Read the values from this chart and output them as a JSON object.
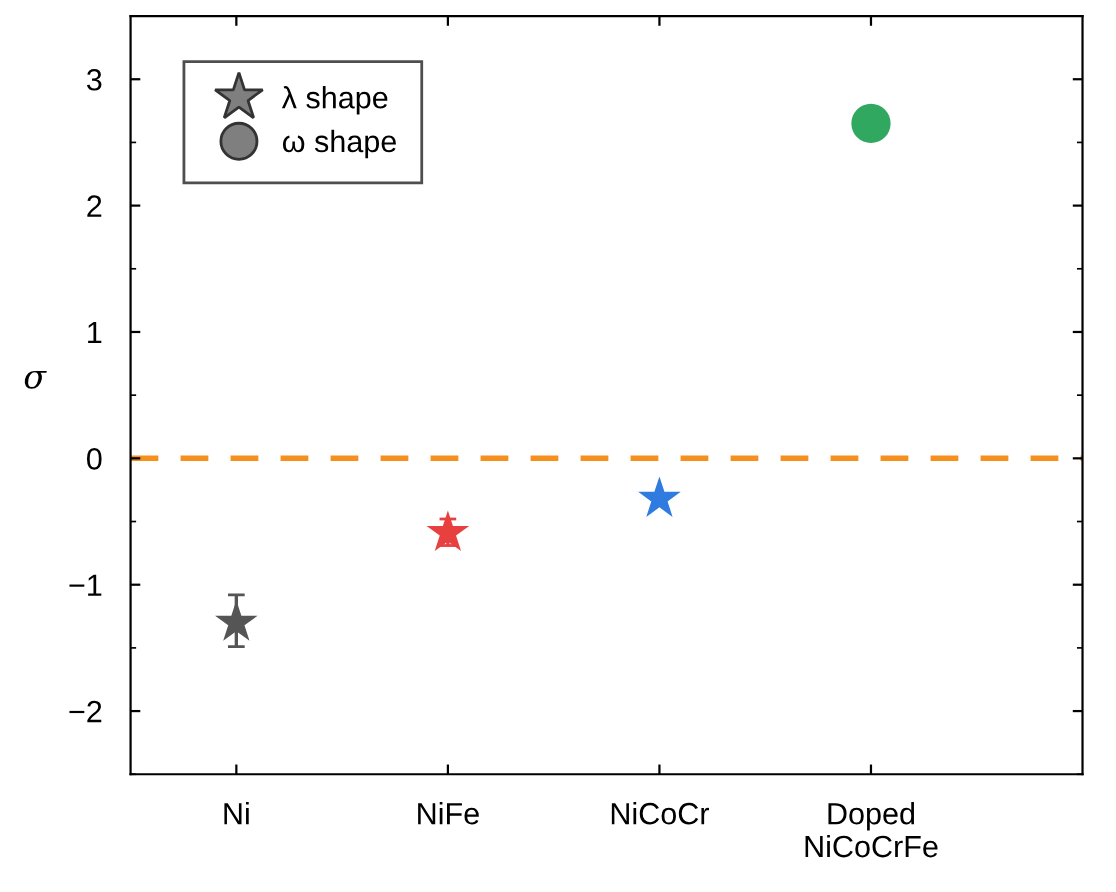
{
  "chart_data": {
    "type": "scatter",
    "ylabel": "σ",
    "categories": [
      "Ni",
      "NiFe",
      "NiCoCr",
      "Doped\nNiCoCrFe"
    ],
    "series": [
      {
        "marker": "star",
        "colors": [
          "#555555",
          "#e8403f",
          "#2f7be0",
          null
        ],
        "values": [
          -1.3,
          -0.59,
          -0.32,
          null
        ],
        "errors": [
          [
            -1.49,
            -1.08
          ],
          [
            -0.69,
            -0.48
          ],
          null,
          null
        ]
      },
      {
        "marker": "circle",
        "colors": [
          null,
          null,
          null,
          "#30a860"
        ],
        "values": [
          null,
          null,
          null,
          2.65
        ]
      }
    ],
    "ylim": [
      -2.5,
      3.5
    ],
    "yticks": [
      {
        "value": -2,
        "label": "−2"
      },
      {
        "value": -1,
        "label": "−1"
      },
      0,
      1,
      2,
      3
    ],
    "ref_lines": [
      {
        "axis": "y",
        "value": 0,
        "color": "#f5901e",
        "line_style": "dashed"
      }
    ],
    "annotations": [
      "λ shape",
      "ω shape"
    ],
    "grid": false
  }
}
